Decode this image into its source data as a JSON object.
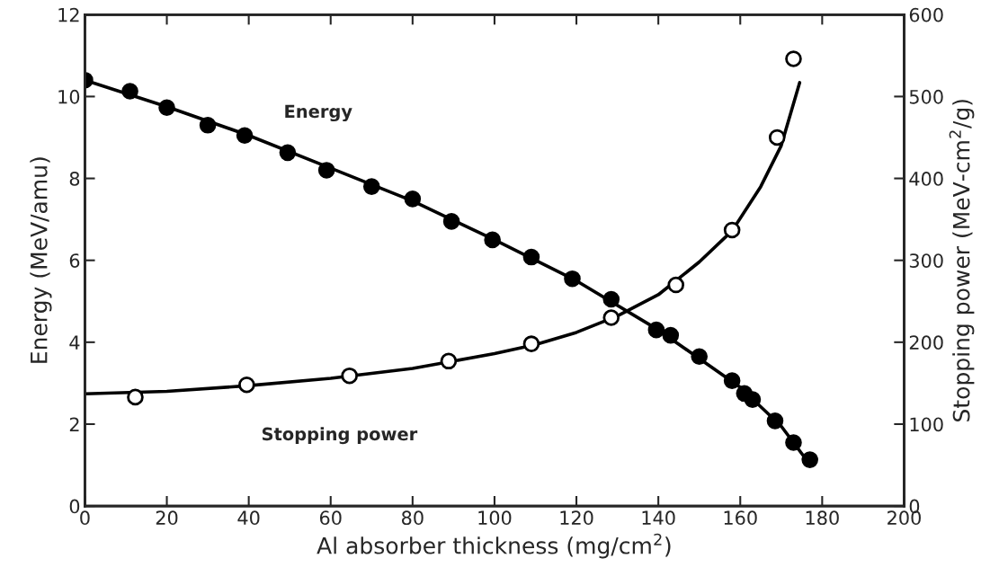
{
  "chart_data": {
    "type": "scatter",
    "xlabel": "Al absorber thickness (mg/cm$^{2}$)",
    "ylabel": "Energy (MeV/amu)",
    "y2label": "Stopping power (MeV-cm$^{2}$/g)",
    "xlim": [
      0,
      200
    ],
    "xticks": [
      0,
      20,
      40,
      60,
      80,
      100,
      120,
      140,
      160,
      180,
      200
    ],
    "ylim": [
      0,
      12
    ],
    "yticks": [
      0,
      2,
      4,
      6,
      8,
      10,
      12
    ],
    "y2lim": [
      0,
      600
    ],
    "y2ticks": [
      0,
      100,
      200,
      300,
      400,
      500,
      600
    ],
    "grid": false,
    "legend": false,
    "marker": "circle",
    "series": [
      {
        "color": "#000000",
        "x": [
          0,
          11,
          20,
          30,
          39,
          49.5,
          59,
          70,
          80,
          89.5,
          99.5,
          109,
          119,
          128.5,
          139.5,
          143,
          150,
          158,
          161,
          163,
          168.5,
          173,
          177
        ],
        "values": [
          10.4,
          10.13,
          9.73,
          9.3,
          9.05,
          8.63,
          8.2,
          7.8,
          7.5,
          6.95,
          6.5,
          6.08,
          5.55,
          5.05,
          4.3,
          4.17,
          3.65,
          3.06,
          2.75,
          2.6,
          2.08,
          1.55,
          1.13
        ]
      },
      {
        "type": "line",
        "name": "Energy",
        "color": "#000000",
        "marker": "none",
        "x": [
          0,
          20,
          40,
          60,
          80,
          100,
          120,
          140,
          160,
          170,
          176
        ],
        "values": [
          10.4,
          9.75,
          9.05,
          8.25,
          7.45,
          6.5,
          5.5,
          4.3,
          2.9,
          1.95,
          1.15
        ]
      },
      {
        "color": "#ffffff",
        "axis": "y2",
        "x": [
          12.3,
          39.5,
          64.6,
          88.8,
          109,
          128.5,
          144.3,
          158,
          169,
          173
        ],
        "values": [
          133,
          148,
          159,
          177,
          198,
          230,
          270,
          337,
          450,
          546
        ]
      },
      {
        "type": "line",
        "name": "Stopping power",
        "color": "#000000",
        "marker": "none",
        "axis": "y2",
        "x": [
          0,
          20,
          40,
          60,
          80,
          100,
          110,
          120,
          130,
          140,
          150,
          158,
          165,
          170,
          174.5
        ],
        "values": [
          137,
          140,
          147,
          156,
          168,
          186,
          197,
          212,
          232,
          258,
          298,
          336,
          390,
          440,
          517
        ]
      }
    ]
  }
}
